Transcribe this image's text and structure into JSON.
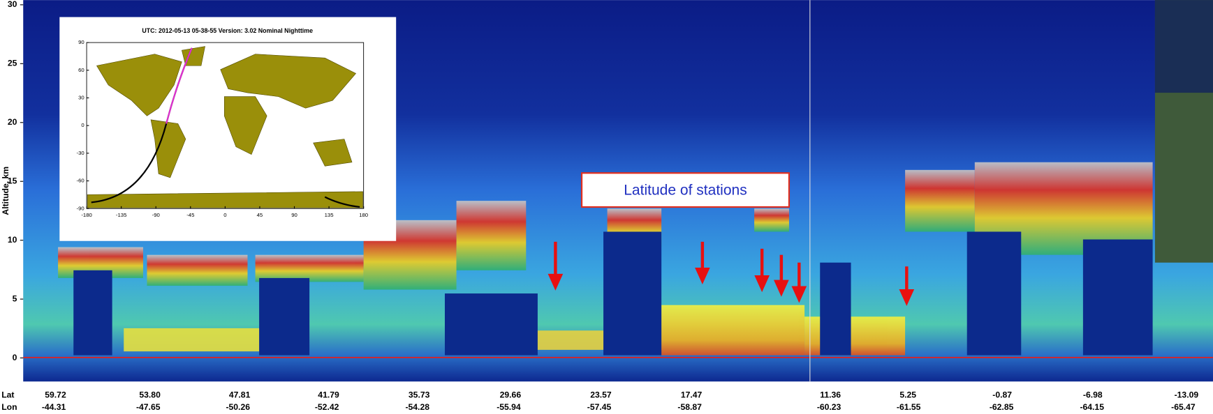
{
  "figure": {
    "y_axis": {
      "label": "Altitude, km",
      "ylim": [
        -2,
        30.4
      ],
      "yticks": [
        0,
        5,
        10,
        15,
        20,
        25,
        30
      ]
    },
    "x_labels": {
      "lat_label": "Lat",
      "lon_label": "Lon",
      "lat": [
        "59.72",
        "53.80",
        "47.81",
        "41.79",
        "35.73",
        "29.66",
        "23.57",
        "17.47",
        "11.36",
        "5.25",
        "-0.87",
        "-6.98",
        "-13.09"
      ],
      "lon": [
        "-44.31",
        "-47.65",
        "-50.26",
        "-52.42",
        "-54.28",
        "-55.94",
        "-57.45",
        "-58.87",
        "-60.23",
        "-61.55",
        "-62.85",
        "-64.15",
        "-65.47"
      ]
    },
    "annotation": "Latitude of stations",
    "inset": {
      "title": "UTC: 2012-05-13  05-38-55   Version: 3.02  Nominal   Nighttime",
      "xlim": [
        -180,
        180
      ],
      "xticks": [
        -180,
        -135,
        -90,
        -45,
        0,
        45,
        90,
        135,
        180
      ],
      "ylim": [
        -90,
        90
      ],
      "yticks": [
        90,
        60,
        30,
        0,
        -30,
        -60,
        -90
      ]
    }
  }
}
